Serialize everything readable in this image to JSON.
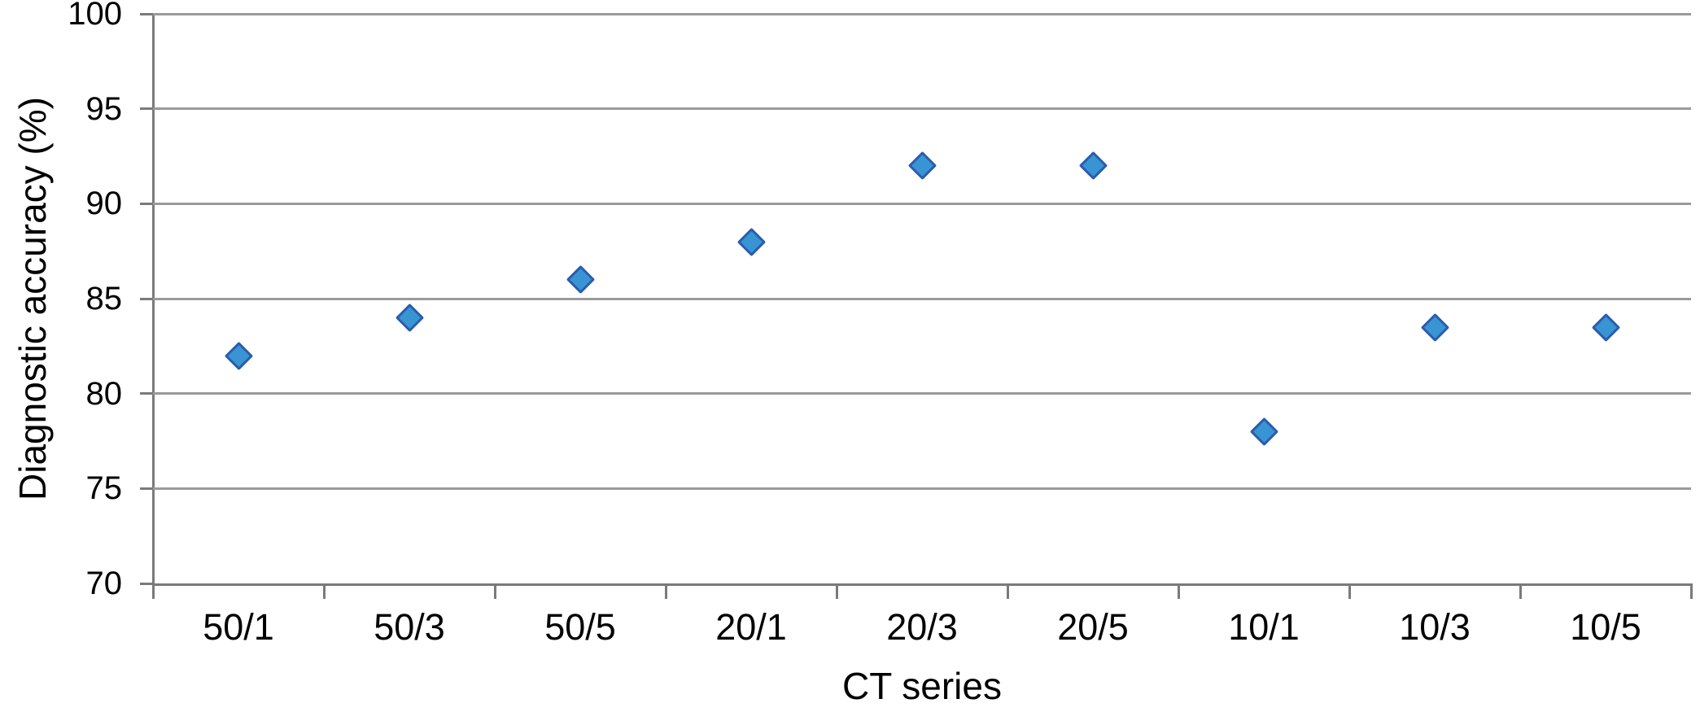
{
  "chart_data": {
    "type": "scatter",
    "title": "",
    "xlabel": "CT series",
    "ylabel": "Diagnostic accuracy (%)",
    "categories": [
      "50/1",
      "50/3",
      "50/5",
      "20/1",
      "20/3",
      "20/5",
      "10/1",
      "10/3",
      "10/5"
    ],
    "series": [
      {
        "name": "Diagnostic accuracy",
        "values": [
          82,
          84,
          86,
          88,
          92,
          92,
          78,
          83.5,
          83.5
        ]
      }
    ],
    "ylim": [
      70,
      100
    ],
    "yticks": [
      70,
      75,
      80,
      85,
      90,
      95,
      100
    ],
    "grid": true,
    "legend": "none",
    "marker": {
      "shape": "diamond",
      "fill": "#3994d3",
      "stroke": "#2b5cad"
    },
    "colors": {
      "gridline": "#9a9a9a",
      "axis": "#7a7a7a",
      "text": "#000000",
      "background": "#ffffff"
    }
  }
}
